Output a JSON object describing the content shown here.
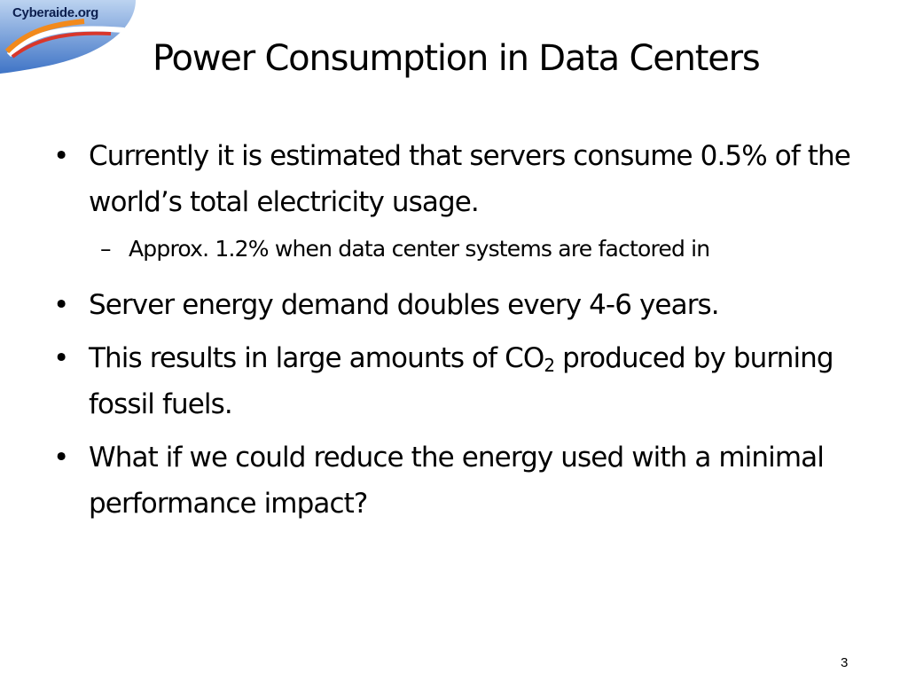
{
  "logo": {
    "text": "Cyberaide.org"
  },
  "slide": {
    "title": "Power Consumption in Data Centers",
    "bullet_marker": "•",
    "sub_marker": "–",
    "bullets": [
      "Currently it is estimated that servers consume 0.5% of the world’s total electricity usage.",
      "Server energy demand doubles every 4-6 years.",
      "What if we could reduce the energy used with a minimal performance impact?"
    ],
    "sub_bullet": "Approx. 1.2% when data center systems are factored in",
    "co2_bullet": {
      "before": "This results in large amounts of CO",
      "subscript": "2",
      "after": " produced by burning fossil fuels."
    },
    "page_number": "3"
  },
  "colors": {
    "logo_blue_light": "#bcd3f0",
    "logo_blue_dark": "#3f74c6",
    "logo_swoosh_orange": "#f28a1c",
    "logo_swoosh_red": "#d9362a"
  }
}
